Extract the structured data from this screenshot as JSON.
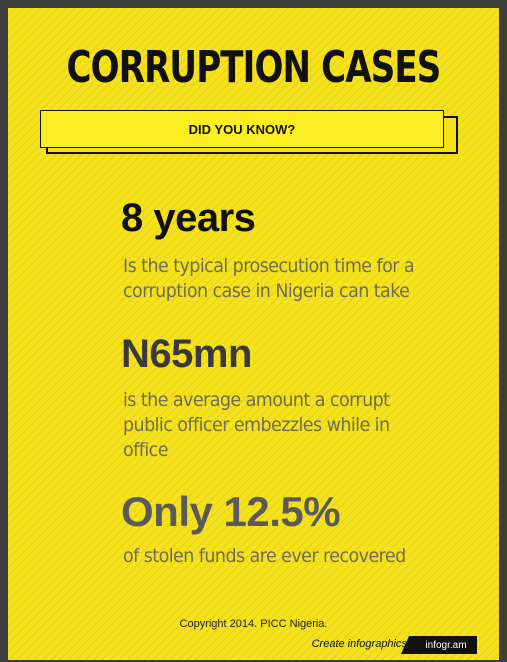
{
  "title": "CORRUPTION CASES",
  "banner": "DID YOU KNOW?",
  "facts": [
    {
      "stat": "8 years",
      "description": "Is the typical prosecution time for a corruption case in Nigeria can take"
    },
    {
      "stat": "N65mn",
      "description": "is the average amount a corrupt public officer embezzles while in office"
    },
    {
      "stat": "Only 12.5%",
      "description": "of stolen funds are ever recovered"
    }
  ],
  "copyright": "Copyright 2014. PICC Nigeria.",
  "footer": {
    "create_text": "Create infographics",
    "brand": "infogr.am"
  },
  "colors": {
    "background": "#f5e21c",
    "text_dark": "#111111",
    "text_muted": "#6e6c58"
  }
}
